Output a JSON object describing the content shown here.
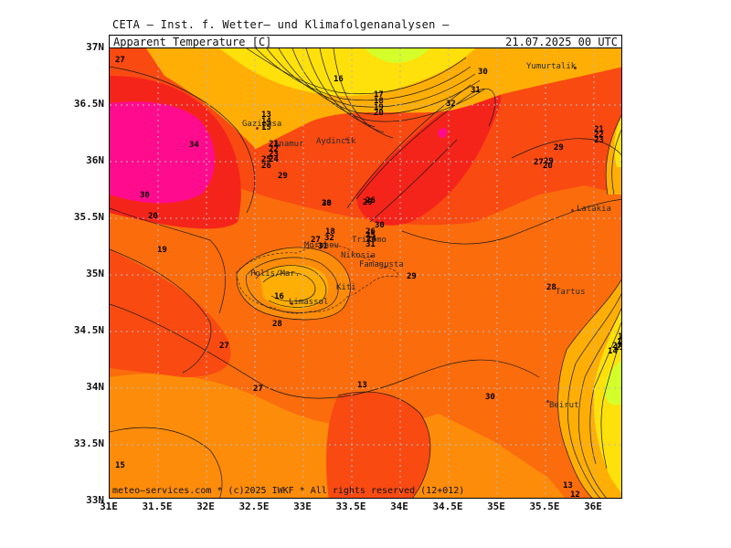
{
  "header": {
    "source": "CETA – Inst. f. Wetter– und Klimafolgenanalysen –",
    "title": "Apparent_Temperature_[C]",
    "valid_time": "21.07.2025 00 UTC"
  },
  "footer": {
    "credit": "meteo–services.com * (c)2025 IWKF * All rights reserved (12+012)"
  },
  "axes": {
    "lat_labels": [
      "37N",
      "36.5N",
      "36N",
      "35.5N",
      "35N",
      "34.5N",
      "34N",
      "33.5N",
      "33N"
    ],
    "lon_labels": [
      "31E",
      "31.5E",
      "32E",
      "32.5E",
      "33E",
      "33.5E",
      "34E",
      "34.5E",
      "35E",
      "35.5E",
      "36E"
    ]
  },
  "cities": [
    {
      "name": "Yumurtalik"
    },
    {
      "name": "Gazipasa"
    },
    {
      "name": "Anamur"
    },
    {
      "name": "Aydincik"
    },
    {
      "name": "Latakia"
    },
    {
      "name": "Morphou"
    },
    {
      "name": "Trikomo"
    },
    {
      "name": "Nikosia"
    },
    {
      "name": "Famagusta"
    },
    {
      "name": "Tartus"
    },
    {
      "name": "Polis/Mar."
    },
    {
      "name": "Kiti"
    },
    {
      "name": "Limassol"
    },
    {
      "name": "Beirut"
    }
  ],
  "contour_labels": [
    "27",
    "16",
    "17",
    "18",
    "19",
    "20",
    "30",
    "31",
    "32",
    "13",
    "14",
    "15",
    "34",
    "21",
    "22",
    "23",
    "24",
    "25",
    "26",
    "29",
    "28",
    "30",
    "26",
    "29",
    "30",
    "20",
    "19",
    "18",
    "27",
    "32",
    "31",
    "26",
    "25",
    "24",
    "31",
    "30",
    "29",
    "28",
    "27",
    "27",
    "13",
    "30",
    "29",
    "29",
    "20",
    "21",
    "22",
    "23",
    "27",
    "28",
    "27",
    "17",
    "16",
    "15",
    "14",
    "13",
    "12",
    "15",
    "16"
  ],
  "colors": {
    "magenta": "#ff0b8e",
    "red": "#f5241a",
    "orange_red": "#f94a12",
    "orange": "#fb6c0c",
    "light_orange": "#fd8c0a",
    "amber": "#ffae06",
    "yellow": "#fee00b",
    "lime": "#d4ff2a",
    "grid": "#b8b8b8"
  }
}
